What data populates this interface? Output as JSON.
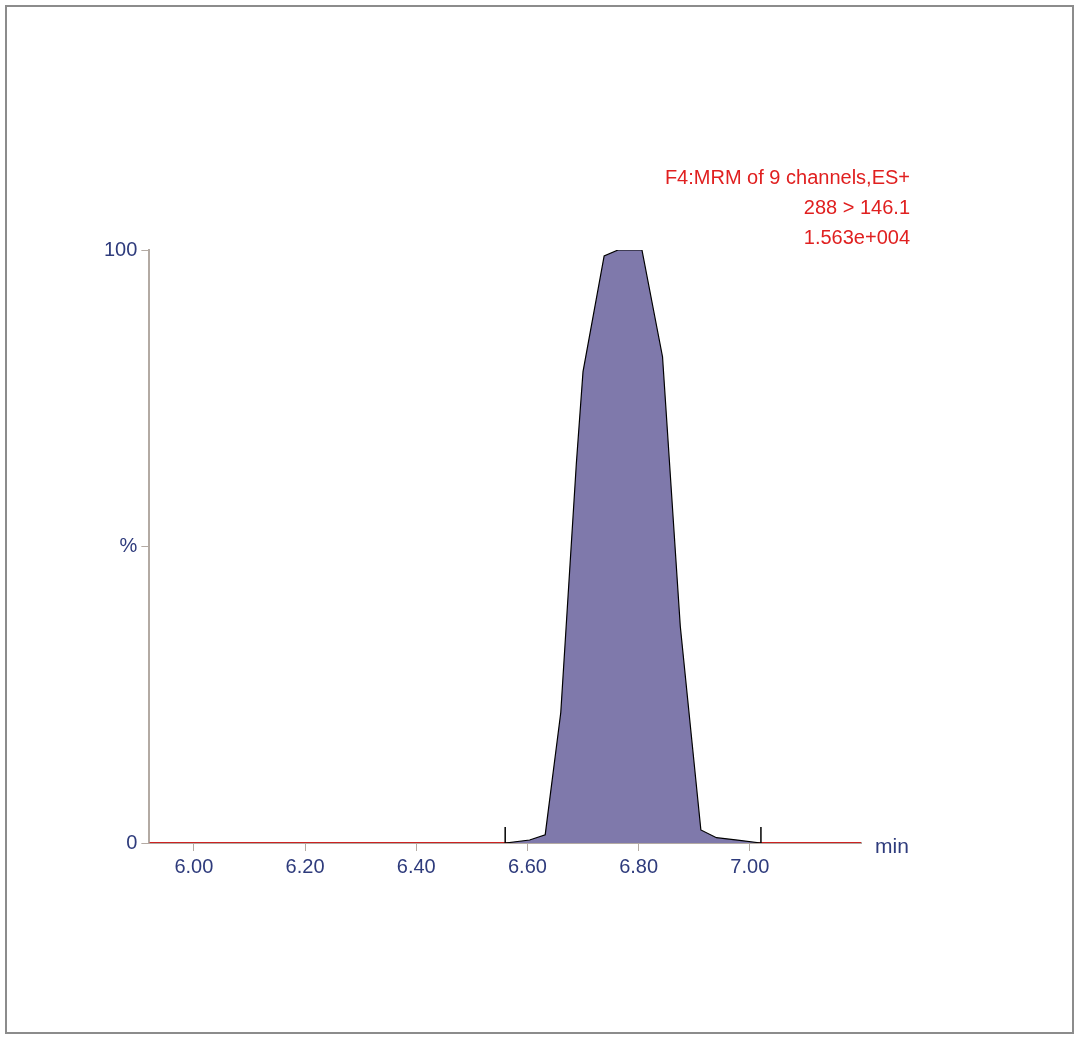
{
  "chart_data": {
    "type": "line",
    "annotations": [
      "F4:MRM of 9 channels,ES+",
      "288 > 146.1",
      "1.563e+004"
    ],
    "x_label": "min",
    "x": [
      5.92,
      6.56,
      6.604,
      6.632,
      6.66,
      6.688,
      6.7,
      6.738,
      6.763,
      6.806,
      6.843,
      6.875,
      6.912,
      6.94,
      6.978,
      7.02,
      7.2
    ],
    "series": [
      {
        "type": "line",
        "color": "#cc2222",
        "values": [
          0,
          0,
          0,
          0,
          0,
          0,
          0,
          0,
          0,
          0,
          0,
          0,
          0,
          0,
          0,
          0,
          0
        ]
      },
      {
        "type": "area",
        "color": "#7f79ab",
        "values": [
          null,
          0,
          0.5,
          1.4,
          22,
          64,
          79.5,
          99,
          100,
          100,
          82,
          36.5,
          2.2,
          0.9,
          0.5,
          0,
          null
        ]
      }
    ],
    "peak_limits": [
      6.56,
      7.02
    ],
    "xlim": [
      5.92,
      7.2
    ],
    "xticks": [
      {
        "value": 6,
        "label": "6.00"
      },
      {
        "value": 6.2,
        "label": "6.20"
      },
      {
        "value": 6.4,
        "label": "6.40"
      },
      {
        "value": 6.6,
        "label": "6.60"
      },
      {
        "value": 6.8,
        "label": "6.80"
      },
      {
        "value": 7,
        "label": "7.00"
      }
    ],
    "ylim": [
      0,
      100
    ],
    "yticks": [
      0,
      {
        "value": 50,
        "label": "%"
      },
      100
    ],
    "grid": false
  }
}
